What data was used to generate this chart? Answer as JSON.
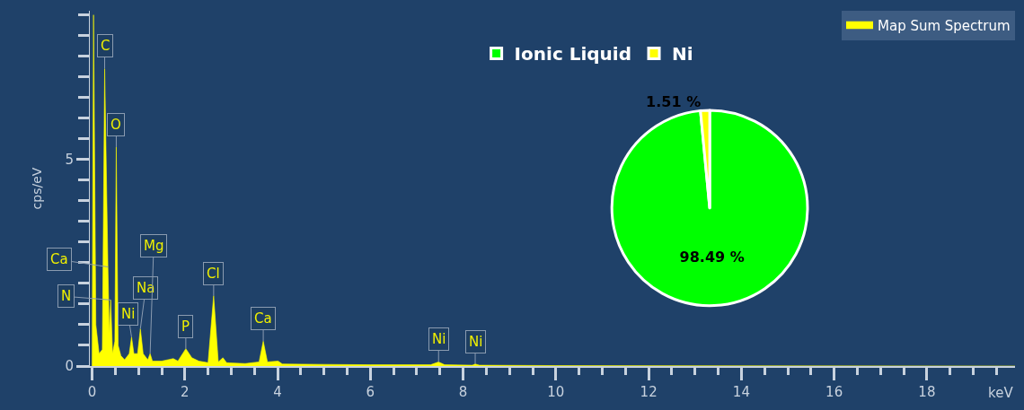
{
  "chart_data": [
    {
      "type": "area",
      "ylabel": "cps/eV",
      "xlabel": "keV",
      "legend": "top right",
      "x": [
        0,
        0.03,
        0.08,
        0.15,
        0.22,
        0.27,
        0.34,
        0.37,
        0.4,
        0.44,
        0.49,
        0.52,
        0.56,
        0.62,
        0.7,
        0.8,
        0.85,
        0.9,
        0.98,
        1.04,
        1.1,
        1.2,
        1.25,
        1.3,
        1.5,
        1.75,
        1.85,
        2.02,
        2.15,
        2.3,
        2.5,
        2.62,
        2.72,
        2.82,
        2.9,
        3.3,
        3.6,
        3.69,
        3.78,
        4.01,
        4.1,
        5,
        6,
        7.3,
        7.47,
        7.6,
        8.2,
        8.26,
        8.35,
        10,
        19.9
      ],
      "series": [
        {
          "name": "Map Sum Spectrum",
          "color": "#ffff00",
          "values": [
            0,
            8.5,
            1.0,
            0.3,
            0.4,
            7.2,
            2.4,
            0.8,
            1.6,
            0.3,
            0.6,
            5.3,
            0.5,
            0.25,
            0.15,
            0.3,
            0.7,
            0.3,
            0.3,
            0.9,
            0.3,
            0.15,
            0.3,
            0.12,
            0.12,
            0.18,
            0.12,
            0.42,
            0.2,
            0.12,
            0.08,
            1.7,
            0.1,
            0.2,
            0.08,
            0.06,
            0.1,
            0.6,
            0.1,
            0.12,
            0.05,
            0.04,
            0.03,
            0.03,
            0.1,
            0.03,
            0.02,
            0.05,
            0.02,
            0.01,
            0
          ]
        }
      ],
      "xlim": [
        -0.05,
        19.9
      ],
      "ylim": [
        0,
        8.6
      ],
      "xticks": [
        0,
        {
          "value": 0.5,
          "label": null
        },
        {
          "value": 1,
          "label": null
        },
        {
          "value": 1.5,
          "label": null
        },
        2,
        {
          "value": 2.5,
          "label": null
        },
        {
          "value": 3,
          "label": null
        },
        {
          "value": 3.5,
          "label": null
        },
        4,
        {
          "value": 4.5,
          "label": null
        },
        {
          "value": 5,
          "label": null
        },
        {
          "value": 5.5,
          "label": null
        },
        6,
        {
          "value": 6.5,
          "label": null
        },
        {
          "value": 7,
          "label": null
        },
        {
          "value": 7.5,
          "label": null
        },
        8,
        {
          "value": 8.5,
          "label": null
        },
        {
          "value": 9,
          "label": null
        },
        {
          "value": 9.5,
          "label": null
        },
        10,
        {
          "value": 10.5,
          "label": null
        },
        {
          "value": 11,
          "label": null
        },
        {
          "value": 11.5,
          "label": null
        },
        12,
        {
          "value": 12.5,
          "label": null
        },
        {
          "value": 13,
          "label": null
        },
        {
          "value": 13.5,
          "label": null
        },
        14,
        {
          "value": 14.5,
          "label": null
        },
        {
          "value": 15,
          "label": null
        },
        {
          "value": 15.5,
          "label": null
        },
        16,
        {
          "value": 16.5,
          "label": null
        },
        {
          "value": 17,
          "label": null
        },
        {
          "value": 17.5,
          "label": null
        },
        18,
        {
          "value": 18.5,
          "label": null
        },
        {
          "value": 19,
          "label": null
        },
        {
          "value": 19.5,
          "label": null
        }
      ],
      "yticks": [
        0,
        {
          "value": 0.5,
          "label": null
        },
        {
          "value": 1,
          "label": null
        },
        {
          "value": 1.5,
          "label": null
        },
        {
          "value": 2,
          "label": null
        },
        {
          "value": 2.5,
          "label": null
        },
        {
          "value": 3,
          "label": null
        },
        {
          "value": 3.5,
          "label": null
        },
        {
          "value": 4,
          "label": null
        },
        {
          "value": 4.5,
          "label": null
        },
        5,
        {
          "value": 5.5,
          "label": null
        },
        {
          "value": 6,
          "label": null
        },
        {
          "value": 6.5,
          "label": null
        },
        {
          "value": 7,
          "label": null
        },
        {
          "value": 7.5,
          "label": null
        },
        {
          "value": 8,
          "label": null
        },
        {
          "value": 8.5,
          "label": null
        }
      ],
      "annotations": [
        {
          "text": "C",
          "x": 0.27,
          "y": 7.2
        },
        {
          "text": "O",
          "x": 0.52,
          "y": 5.3
        },
        {
          "text": "Ca",
          "x": 0.34,
          "y": 2.4
        },
        {
          "text": "N",
          "x": 0.4,
          "y": 1.6
        },
        {
          "text": "Ni",
          "x": 0.85,
          "y": 0.7
        },
        {
          "text": "Na",
          "x": 1.04,
          "y": 0.9
        },
        {
          "text": "Mg",
          "x": 1.25,
          "y": 0.3
        },
        {
          "text": "P",
          "x": 2.02,
          "y": 0.42
        },
        {
          "text": "Cl",
          "x": 2.62,
          "y": 1.7
        },
        {
          "text": "Ca",
          "x": 3.69,
          "y": 0.6
        },
        {
          "text": "Ni",
          "x": 7.47,
          "y": 0.1
        },
        {
          "text": "Ni",
          "x": 8.26,
          "y": 0.05
        }
      ]
    },
    {
      "type": "pie",
      "legend": "top",
      "categories": [
        "Ionic Liquid",
        "Ni"
      ],
      "values": [
        98.49,
        1.51
      ],
      "colors": [
        "#00ff00",
        "#ffff00"
      ],
      "value_labels": [
        "98.49 %",
        "1.51 %"
      ]
    }
  ]
}
